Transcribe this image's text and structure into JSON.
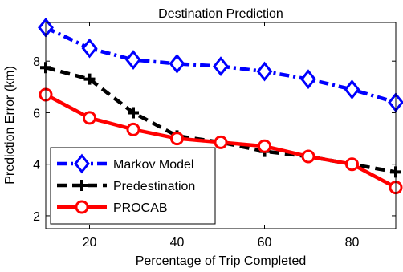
{
  "chart_data": {
    "type": "line",
    "title": "Destination Prediction",
    "xlabel": "Percentage of Trip Completed",
    "ylabel": "Prediction Error (km)",
    "xlim": [
      10,
      90
    ],
    "ylim": [
      1.5,
      9.5
    ],
    "xticks": [
      20,
      40,
      60,
      80
    ],
    "yticks": [
      2,
      4,
      6,
      8
    ],
    "grid": false,
    "legend_position": "bottom-left",
    "x": [
      10,
      20,
      30,
      40,
      50,
      60,
      70,
      80,
      90
    ],
    "series": [
      {
        "name": "Markov Model",
        "color": "#0000ff",
        "line_style": "dash-dot",
        "marker": "diamond",
        "values": [
          9.3,
          8.5,
          8.05,
          7.9,
          7.8,
          7.6,
          7.3,
          6.9,
          6.4
        ]
      },
      {
        "name": "Predestination",
        "color": "#000000",
        "line_style": "dashed",
        "marker": "plus",
        "values": [
          7.75,
          7.3,
          6.0,
          5.1,
          4.85,
          4.5,
          4.3,
          4.0,
          3.7
        ]
      },
      {
        "name": "PROCAB",
        "color": "#ff0000",
        "line_style": "solid",
        "marker": "circle",
        "values": [
          6.7,
          5.8,
          5.35,
          5.0,
          4.85,
          4.7,
          4.3,
          4.0,
          3.1
        ]
      }
    ]
  }
}
